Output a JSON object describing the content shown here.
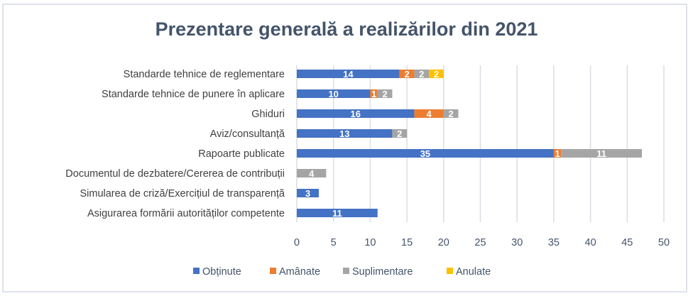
{
  "chart_data": {
    "type": "bar",
    "orientation": "horizontal",
    "stacked": true,
    "title": "Prezentare generală a realizărilor din 2021",
    "xlabel": "",
    "ylabel": "",
    "xlim": [
      0,
      50
    ],
    "xticks": [
      0,
      5,
      10,
      15,
      20,
      25,
      30,
      35,
      40,
      45,
      50
    ],
    "grid": "vertical",
    "legend_position": "bottom",
    "categories": [
      "Standarde tehnice de reglementare",
      "Standarde tehnice de punere în aplicare",
      "Ghiduri",
      "Aviz/consultanță",
      "Rapoarte publicate",
      "Documentul de dezbatere/Cererea de contribuții",
      "Simularea de criză/Exercițiul de transparență",
      "Asigurarea formării autorităților competente"
    ],
    "series": [
      {
        "name": "Obținute",
        "color": "#4472c4",
        "values": [
          14,
          10,
          16,
          13,
          35,
          0,
          3,
          11
        ]
      },
      {
        "name": "Amânate",
        "color": "#ed7d31",
        "values": [
          2,
          1,
          4,
          0,
          1,
          0,
          0,
          0
        ]
      },
      {
        "name": "Suplimentare",
        "color": "#a5a5a5",
        "values": [
          2,
          2,
          2,
          2,
          11,
          4,
          0,
          0
        ]
      },
      {
        "name": "Anulate",
        "color": "#ffc000",
        "values": [
          2,
          0,
          0,
          0,
          0,
          0,
          0,
          0
        ]
      }
    ]
  }
}
